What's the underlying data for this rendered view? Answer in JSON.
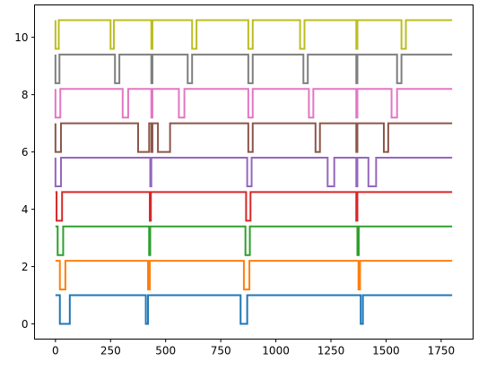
{
  "chart_data": {
    "type": "line",
    "title": "",
    "xlabel": "",
    "ylabel": "",
    "xlim": [
      -95,
      1895
    ],
    "ylim": [
      -0.53,
      11.13
    ],
    "x_ticks": [
      0,
      250,
      500,
      750,
      1000,
      1250,
      1500,
      1750
    ],
    "x_tick_labels": [
      "0",
      "250",
      "500",
      "750",
      "1000",
      "1250",
      "1500",
      "1750"
    ],
    "y_ticks": [
      0,
      2,
      4,
      6,
      8,
      10
    ],
    "y_tick_labels": [
      "0",
      "2",
      "4",
      "6",
      "8",
      "10"
    ],
    "grid": false,
    "legend": false,
    "series": [
      {
        "color": "#1f77b4",
        "high": 1.0,
        "low": 0.0,
        "x_start": 0,
        "x_end": 1800,
        "dips": [
          [
            20,
            65
          ],
          [
            410,
            420
          ],
          [
            840,
            870
          ],
          [
            1385,
            1395
          ]
        ]
      },
      {
        "color": "#ff7f0e",
        "high": 2.2,
        "low": 1.2,
        "x_start": 0,
        "x_end": 1800,
        "dips": [
          [
            20,
            45
          ],
          [
            420,
            428
          ],
          [
            855,
            880
          ],
          [
            1375,
            1382
          ]
        ]
      },
      {
        "color": "#2ca02c",
        "high": 3.4,
        "low": 2.4,
        "x_start": 0,
        "x_end": 1800,
        "dips": [
          [
            10,
            35
          ],
          [
            425,
            430
          ],
          [
            862,
            882
          ],
          [
            1370,
            1376
          ]
        ]
      },
      {
        "color": "#d62728",
        "high": 4.6,
        "low": 3.6,
        "x_start": 0,
        "x_end": 1800,
        "dips": [
          [
            5,
            30
          ],
          [
            428,
            433
          ],
          [
            865,
            885
          ],
          [
            1365,
            1370
          ]
        ]
      },
      {
        "color": "#9467bd",
        "high": 5.8,
        "low": 4.8,
        "x_start": 0,
        "x_end": 1800,
        "dips": [
          [
            0,
            25
          ],
          [
            430,
            435
          ],
          [
            870,
            890
          ],
          [
            1235,
            1265
          ],
          [
            1365,
            1370
          ],
          [
            1420,
            1455
          ]
        ]
      },
      {
        "color": "#8c564b",
        "high": 7.0,
        "low": 6.0,
        "x_start": 0,
        "x_end": 1800,
        "dips": [
          [
            0,
            25
          ],
          [
            375,
            425
          ],
          [
            435,
            440
          ],
          [
            465,
            520
          ],
          [
            875,
            895
          ],
          [
            1180,
            1200
          ],
          [
            1365,
            1370
          ],
          [
            1490,
            1510
          ]
        ]
      },
      {
        "color": "#e377c2",
        "high": 8.2,
        "low": 7.2,
        "x_start": 0,
        "x_end": 1800,
        "dips": [
          [
            0,
            22
          ],
          [
            305,
            330
          ],
          [
            435,
            440
          ],
          [
            560,
            585
          ],
          [
            875,
            895
          ],
          [
            1150,
            1170
          ],
          [
            1365,
            1370
          ],
          [
            1525,
            1550
          ]
        ]
      },
      {
        "color": "#7f7f7f",
        "high": 9.4,
        "low": 8.4,
        "x_start": 0,
        "x_end": 1800,
        "dips": [
          [
            0,
            18
          ],
          [
            270,
            290
          ],
          [
            435,
            440
          ],
          [
            600,
            620
          ],
          [
            875,
            895
          ],
          [
            1125,
            1145
          ],
          [
            1365,
            1370
          ],
          [
            1550,
            1570
          ]
        ]
      },
      {
        "color": "#bcbd22",
        "high": 10.6,
        "low": 9.6,
        "x_start": 0,
        "x_end": 1800,
        "dips": [
          [
            0,
            15
          ],
          [
            250,
            265
          ],
          [
            435,
            440
          ],
          [
            620,
            640
          ],
          [
            875,
            895
          ],
          [
            1110,
            1130
          ],
          [
            1365,
            1370
          ],
          [
            1570,
            1590
          ]
        ]
      }
    ]
  }
}
